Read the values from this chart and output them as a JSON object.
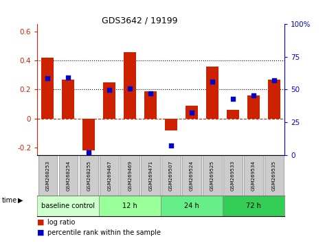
{
  "title": "GDS3642 / 19199",
  "samples": [
    "GSM268253",
    "GSM268254",
    "GSM268255",
    "GSM269467",
    "GSM269469",
    "GSM269471",
    "GSM269507",
    "GSM269524",
    "GSM269525",
    "GSM269533",
    "GSM269534",
    "GSM269535"
  ],
  "log_ratio": [
    0.42,
    0.27,
    -0.22,
    0.25,
    0.46,
    0.19,
    -0.08,
    0.09,
    0.36,
    0.06,
    0.16,
    0.27
  ],
  "percentile_rank": [
    58.5,
    59.0,
    2.0,
    49.5,
    51.0,
    47.0,
    7.0,
    32.5,
    56.0,
    43.0,
    45.5,
    57.0
  ],
  "groups": [
    {
      "label": "baseline control",
      "start": 0,
      "end": 3,
      "color": "#ccffcc"
    },
    {
      "label": "12 h",
      "start": 3,
      "end": 6,
      "color": "#99ff99"
    },
    {
      "label": "24 h",
      "start": 6,
      "end": 9,
      "color": "#66ee88"
    },
    {
      "label": "72 h",
      "start": 9,
      "end": 12,
      "color": "#33cc55"
    }
  ],
  "bar_color": "#cc2200",
  "scatter_color": "#0000cc",
  "ylim_left": [
    -0.25,
    0.65
  ],
  "ylim_right": [
    0,
    100
  ],
  "yticks_left": [
    -0.2,
    0.0,
    0.2,
    0.4,
    0.6
  ],
  "yticks_right": [
    0,
    25,
    50,
    75,
    100
  ],
  "ytick_labels_left": [
    "-0.2",
    "0",
    "0.2",
    "0.4",
    "0.6"
  ],
  "ytick_labels_right": [
    "0",
    "25",
    "50",
    "75",
    "100%"
  ],
  "hlines": [
    0.2,
    0.4
  ],
  "zero_line": 0.0,
  "bar_width": 0.6,
  "time_label": "time",
  "legend_bar_label": "log ratio",
  "legend_scatter_label": "percentile rank within the sample",
  "sample_box_color": "#cccccc",
  "sample_box_edge": "#888888"
}
